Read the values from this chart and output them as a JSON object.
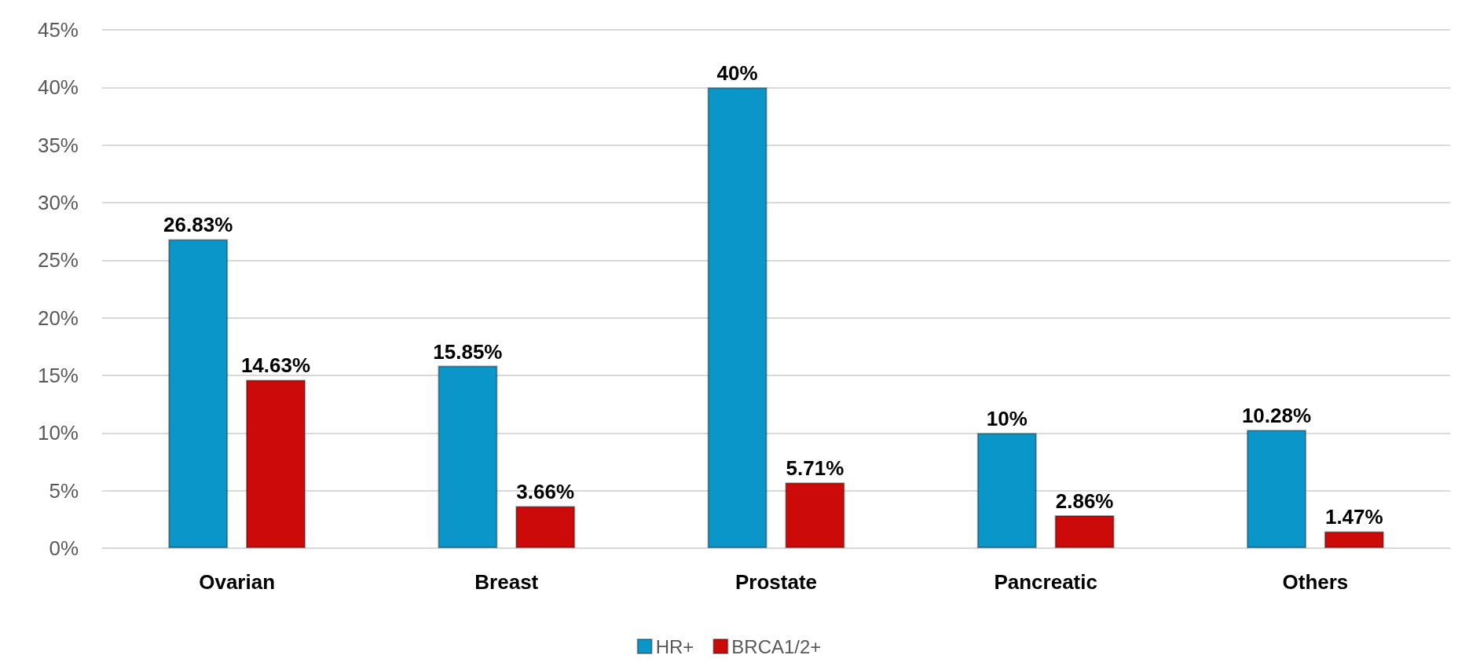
{
  "chart_data": {
    "type": "bar",
    "categories": [
      "Ovarian",
      "Breast",
      "Prostate",
      "Pancreatic",
      "Others"
    ],
    "series": [
      {
        "name": "HR+",
        "color": "#0a96c8",
        "values": [
          26.83,
          15.85,
          40,
          10,
          10.28
        ],
        "value_labels": [
          "26.83%",
          "15.85%",
          "40%",
          "10%",
          "10.28%"
        ]
      },
      {
        "name": "BRCA1/2+",
        "color": "#cc0a0a",
        "values": [
          14.63,
          3.66,
          5.71,
          2.86,
          1.47
        ],
        "value_labels": [
          "14.63%",
          "3.66%",
          "5.71%",
          "2.86%",
          "1.47%"
        ]
      }
    ],
    "ylim": [
      0,
      45
    ],
    "yticks": [
      {
        "value": 0,
        "label": "0%"
      },
      {
        "value": 5,
        "label": "5%"
      },
      {
        "value": 10,
        "label": "10%"
      },
      {
        "value": 15,
        "label": "15%"
      },
      {
        "value": 20,
        "label": "20%"
      },
      {
        "value": 25,
        "label": "25%"
      },
      {
        "value": 30,
        "label": "30%"
      },
      {
        "value": 35,
        "label": "35%"
      },
      {
        "value": 40,
        "label": "40%"
      },
      {
        "value": 45,
        "label": "45%"
      }
    ],
    "grid": "y",
    "legend": "bottom"
  }
}
